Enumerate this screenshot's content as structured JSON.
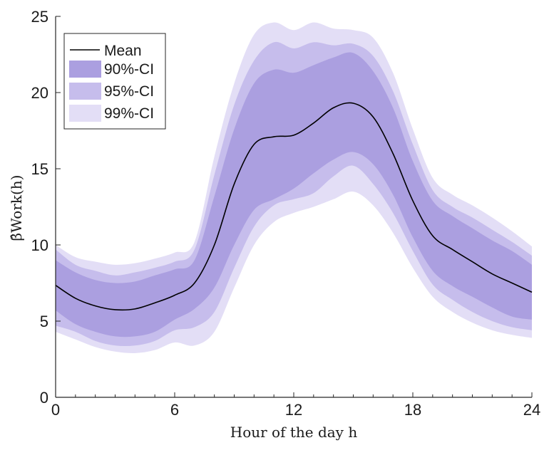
{
  "chart_data": {
    "type": "area",
    "xlabel": "Hour of the day h",
    "ylabel": "β̂Work(h)",
    "xlim": [
      0,
      24
    ],
    "ylim": [
      0,
      25
    ],
    "xticks": [
      0,
      6,
      12,
      18,
      24
    ],
    "yticks": [
      0,
      5,
      10,
      15,
      20,
      25
    ],
    "grid": false,
    "legend_position": "top-left",
    "x": [
      0,
      1,
      2,
      3,
      4,
      5,
      6,
      7,
      8,
      9,
      10,
      11,
      12,
      13,
      14,
      15,
      16,
      17,
      18,
      19,
      20,
      21,
      22,
      23,
      24
    ],
    "series": [
      {
        "name": "Mean",
        "type": "line",
        "color": "#000000",
        "values": [
          7.35,
          6.5,
          6.0,
          5.75,
          5.8,
          6.2,
          6.7,
          7.5,
          10.0,
          14.0,
          16.6,
          17.1,
          17.2,
          18.0,
          19.0,
          19.3,
          18.4,
          16.0,
          12.9,
          10.6,
          9.7,
          8.9,
          8.1,
          7.5,
          6.9
        ]
      },
      {
        "name": "90%-CI",
        "type": "band",
        "color": "#ab9fe0",
        "lower": [
          5.7,
          4.8,
          4.3,
          4.0,
          4.0,
          4.3,
          5.1,
          5.8,
          7.2,
          10.0,
          12.3,
          13.0,
          13.7,
          14.7,
          15.6,
          16.1,
          15.3,
          13.3,
          10.5,
          8.3,
          7.3,
          6.6,
          5.9,
          5.3,
          5.1
        ],
        "upper": [
          9.0,
          8.2,
          7.7,
          7.5,
          7.6,
          8.0,
          8.4,
          9.0,
          13.2,
          17.6,
          20.6,
          21.5,
          21.3,
          21.8,
          22.3,
          22.6,
          21.4,
          19.0,
          15.5,
          12.9,
          11.9,
          11.1,
          10.3,
          9.6,
          8.7
        ]
      },
      {
        "name": "95%-CI",
        "type": "band",
        "color": "#c6bdec",
        "lower": [
          4.7,
          4.3,
          3.7,
          3.4,
          3.4,
          3.7,
          4.4,
          4.6,
          5.6,
          8.5,
          11.2,
          12.6,
          13.0,
          13.4,
          14.5,
          15.2,
          14.0,
          12.1,
          9.6,
          7.4,
          6.4,
          5.6,
          5.0,
          4.6,
          4.4
        ],
        "upper": [
          9.7,
          8.7,
          8.3,
          8.0,
          8.2,
          8.5,
          8.9,
          9.7,
          14.6,
          19.2,
          22.1,
          23.3,
          22.9,
          23.3,
          23.1,
          23.2,
          22.4,
          20.1,
          16.6,
          13.6,
          12.5,
          11.8,
          11.0,
          10.2,
          9.3
        ]
      },
      {
        "name": "99%-CI",
        "type": "band",
        "color": "#e3def6",
        "lower": [
          4.3,
          3.8,
          3.3,
          3.0,
          2.9,
          3.1,
          3.6,
          3.4,
          4.3,
          7.2,
          10.0,
          11.5,
          12.1,
          12.5,
          13.0,
          13.5,
          12.6,
          10.8,
          8.5,
          6.6,
          5.6,
          4.9,
          4.4,
          4.1,
          3.9
        ],
        "upper": [
          10.0,
          9.2,
          8.9,
          8.7,
          8.8,
          9.1,
          9.5,
          10.2,
          15.8,
          20.6,
          23.8,
          24.6,
          24.1,
          24.6,
          24.2,
          24.1,
          23.6,
          21.3,
          17.6,
          14.4,
          13.3,
          12.6,
          11.8,
          10.9,
          9.9
        ]
      }
    ]
  }
}
